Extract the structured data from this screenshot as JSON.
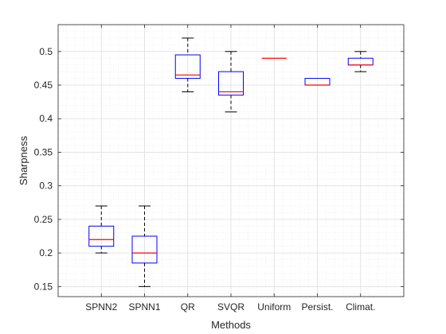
{
  "chart_data": {
    "type": "box",
    "xlabel": "Methods",
    "ylabel": "Sharpness",
    "categories": [
      "SPNN2",
      "SPNN1",
      "QR",
      "SVQR",
      "Uniform",
      "Persist.",
      "Climat."
    ],
    "ylim": [
      0.135,
      0.54
    ],
    "yticks": [
      0.15,
      0.2,
      0.25,
      0.3,
      0.35,
      0.4,
      0.45,
      0.5
    ],
    "ytick_labels": [
      "0.15",
      "0.2",
      "0.25",
      "0.3",
      "0.35",
      "0.4",
      "0.45",
      "0.5"
    ],
    "grid": true,
    "minor_grid": true,
    "boxes": [
      {
        "category": "SPNN2",
        "whisker_low": 0.2,
        "q1": 0.21,
        "median": 0.22,
        "q3": 0.24,
        "whisker_high": 0.27
      },
      {
        "category": "SPNN1",
        "whisker_low": 0.15,
        "q1": 0.185,
        "median": 0.2,
        "q3": 0.225,
        "whisker_high": 0.27
      },
      {
        "category": "QR",
        "whisker_low": 0.44,
        "q1": 0.46,
        "median": 0.465,
        "q3": 0.495,
        "whisker_high": 0.52
      },
      {
        "category": "SVQR",
        "whisker_low": 0.41,
        "q1": 0.435,
        "median": 0.44,
        "q3": 0.47,
        "whisker_high": 0.5
      },
      {
        "category": "Uniform",
        "whisker_low": 0.49,
        "q1": 0.49,
        "median": 0.49,
        "q3": 0.49,
        "whisker_high": 0.49
      },
      {
        "category": "Persist.",
        "whisker_low": 0.45,
        "q1": 0.45,
        "median": 0.45,
        "q3": 0.46,
        "whisker_high": 0.46
      },
      {
        "category": "Climat.",
        "whisker_low": 0.47,
        "q1": 0.48,
        "median": 0.48,
        "q3": 0.49,
        "whisker_high": 0.5
      }
    ],
    "colors": {
      "box": "#0000ff",
      "median": "#ff0000",
      "whisker": "#000000",
      "major_grid": "#dfdfdf",
      "minor_grid": "#ececec",
      "axis": "#262626"
    }
  }
}
